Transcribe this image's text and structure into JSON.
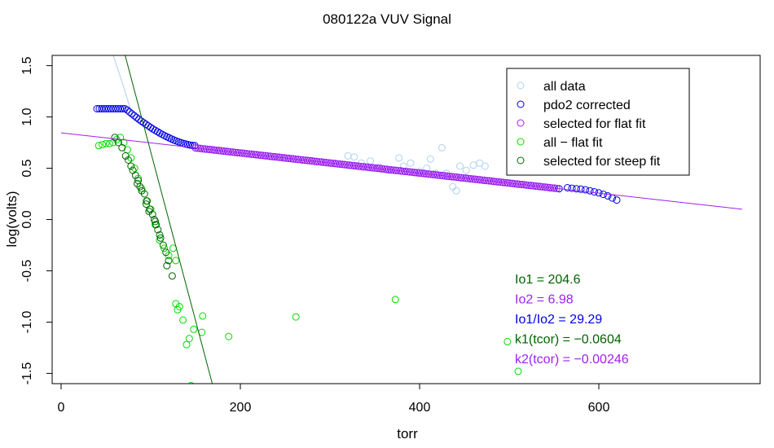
{
  "colors": {
    "all_data": "#b0d0ee",
    "pdo2": "#0000e6",
    "flat": "#a020f0",
    "flat_line": "#a020f0",
    "all_minus_flat": "#00dd00",
    "steep": "#006400",
    "steep_line": "#006400",
    "io1_text": "#006400",
    "io2_text": "#a020f0",
    "ratio_text": "#0000e6",
    "k1_text": "#006400",
    "k2_text": "#a020f0"
  },
  "chart_data": {
    "type": "scatter",
    "title": "080122a   VUV Signal",
    "xlabel": "torr",
    "ylabel": "log(volts)",
    "xlim": [
      -10,
      780
    ],
    "ylim": [
      -1.6,
      1.6
    ],
    "x_ticks": [
      0,
      200,
      400,
      600
    ],
    "y_ticks": [
      -1.5,
      -1.0,
      -0.5,
      0.0,
      0.5,
      1.0,
      1.5
    ],
    "x_tick_labels": [
      "0",
      "200",
      "400",
      "600"
    ],
    "y_tick_labels": [
      "-1.5",
      "-1.0",
      "-0.5",
      "0.0",
      "0.5",
      "1.0",
      "1.5"
    ],
    "legend": {
      "position": "top-right",
      "entries": [
        {
          "label": "all data",
          "color_key": "all_data"
        },
        {
          "label": "pdo2 corrected",
          "color_key": "pdo2"
        },
        {
          "label": "selected for flat fit",
          "color_key": "flat"
        },
        {
          "label": "all − flat fit",
          "color_key": "all_minus_flat"
        },
        {
          "label": "selected for steep fit",
          "color_key": "steep"
        }
      ]
    },
    "fit_lines": {
      "flat": {
        "intercept": 0.845,
        "slope": -0.00098,
        "x_from": 0,
        "x_to": 760
      },
      "steep": {
        "intercept": 3.95,
        "slope": -0.0329,
        "x_from": 30,
        "x_to": 175
      }
    },
    "series": [
      {
        "name": "all data",
        "color_key": "all_data",
        "points": [
          [
            320,
            0.62
          ],
          [
            327,
            0.61
          ],
          [
            335,
            0.55
          ],
          [
            345,
            0.57
          ],
          [
            355,
            0.51
          ],
          [
            365,
            0.48
          ],
          [
            377,
            0.6
          ],
          [
            382,
            0.52
          ],
          [
            390,
            0.55
          ],
          [
            400,
            0.47
          ],
          [
            408,
            0.5
          ],
          [
            412,
            0.59
          ],
          [
            418,
            0.45
          ],
          [
            425,
            0.7
          ],
          [
            430,
            0.45
          ],
          [
            437,
            0.32
          ],
          [
            441,
            0.28
          ],
          [
            445,
            0.52
          ],
          [
            452,
            0.48
          ],
          [
            460,
            0.53
          ],
          [
            467,
            0.55
          ],
          [
            473,
            0.52
          ]
        ]
      },
      {
        "name": "pdo2 corrected",
        "color_key": "pdo2",
        "curve": {
          "x_from": 40,
          "x_to": 620,
          "step": 2.6
        },
        "upper_x_from": 40,
        "upper_x_to": 72,
        "upper_y": 1.08,
        "knee_x": 150,
        "knee_y": 0.72,
        "flat_x_from": 150,
        "flat_x_to": 560,
        "tail_points": [
          [
            565,
            0.31
          ],
          [
            570,
            0.305
          ],
          [
            575,
            0.3
          ],
          [
            580,
            0.295
          ],
          [
            585,
            0.29
          ],
          [
            590,
            0.28
          ],
          [
            595,
            0.27
          ],
          [
            600,
            0.26
          ],
          [
            605,
            0.245
          ],
          [
            610,
            0.23
          ],
          [
            615,
            0.21
          ],
          [
            620,
            0.19
          ]
        ]
      },
      {
        "name": "selected for flat fit",
        "color_key": "flat",
        "x_from": 150,
        "x_to": 555,
        "step": 2.6
      },
      {
        "name": "all − flat fit",
        "color_key": "all_minus_flat",
        "points": [
          [
            42,
            0.72
          ],
          [
            46,
            0.73
          ],
          [
            50,
            0.74
          ],
          [
            54,
            0.74
          ],
          [
            58,
            0.75
          ],
          [
            62,
            0.78
          ],
          [
            66,
            0.8
          ],
          [
            70,
            0.75
          ],
          [
            74,
            0.68
          ],
          [
            78,
            0.6
          ],
          [
            82,
            0.5
          ],
          [
            86,
            0.4
          ],
          [
            90,
            0.3
          ],
          [
            95,
            0.18
          ],
          [
            100,
            0.1
          ],
          [
            105,
            -0.05
          ],
          [
            110,
            -0.2
          ],
          [
            115,
            -0.28
          ],
          [
            120,
            -0.35
          ],
          [
            125,
            -0.28
          ],
          [
            128,
            -0.4
          ],
          [
            132,
            -0.85
          ],
          [
            128,
            -0.82
          ],
          [
            130,
            -0.88
          ],
          [
            136,
            -0.98
          ],
          [
            140,
            -1.22
          ],
          [
            143,
            -1.16
          ],
          [
            148,
            -1.07
          ],
          [
            157,
            -1.1
          ],
          [
            158,
            -0.94
          ],
          [
            187,
            -1.14
          ],
          [
            145,
            -1.62
          ],
          [
            262,
            -0.95
          ],
          [
            373,
            -0.78
          ],
          [
            498,
            -1.19
          ],
          [
            510,
            -1.48
          ]
        ]
      },
      {
        "name": "selected for steep fit",
        "color_key": "steep",
        "points": [
          [
            60,
            0.8
          ],
          [
            64,
            0.75
          ],
          [
            68,
            0.7
          ],
          [
            72,
            0.62
          ],
          [
            75,
            0.58
          ],
          [
            78,
            0.52
          ],
          [
            80,
            0.48
          ],
          [
            83,
            0.43
          ],
          [
            86,
            0.38
          ],
          [
            88,
            0.32
          ],
          [
            90,
            0.28
          ],
          [
            93,
            0.25
          ],
          [
            96,
            0.18
          ],
          [
            99,
            0.1
          ],
          [
            102,
            0.05
          ],
          [
            104,
            0.0
          ],
          [
            106,
            -0.05
          ],
          [
            108,
            -0.1
          ],
          [
            111,
            -0.18
          ],
          [
            114,
            -0.25
          ],
          [
            117,
            -0.32
          ],
          [
            120,
            -0.4
          ],
          [
            124,
            -0.55
          ],
          [
            85,
            0.35
          ],
          [
            98,
            0.08
          ],
          [
            110,
            -0.15
          ],
          [
            105,
            -0.02
          ],
          [
            95,
            0.15
          ],
          [
            118,
            -0.45
          ]
        ]
      }
    ],
    "annotations": [
      {
        "text": "Io1 =  204.6",
        "color_key": "io1_text"
      },
      {
        "text": "Io2 =  6.98",
        "color_key": "io2_text"
      },
      {
        "text": "Io1/Io2 =  29.29",
        "color_key": "ratio_text"
      },
      {
        "text": "k1(tcor) =  −0.0604",
        "color_key": "k1_text"
      },
      {
        "text": "k2(tcor) =  −0.00246",
        "color_key": "k2_text"
      }
    ]
  }
}
